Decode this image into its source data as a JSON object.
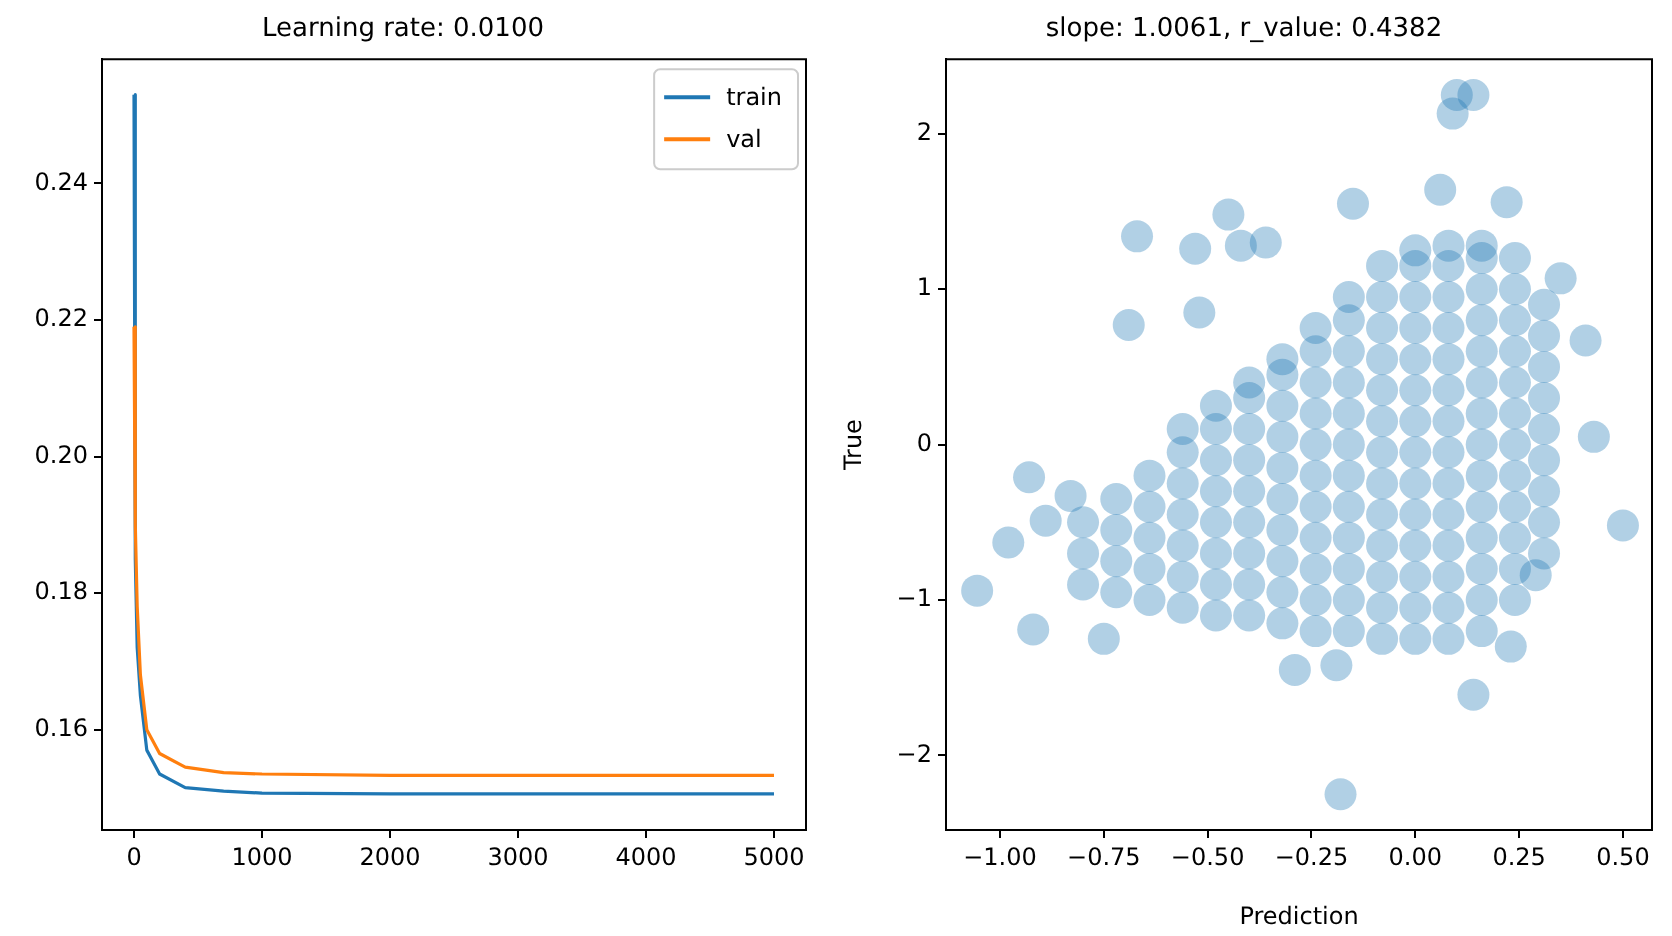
{
  "chart_data": [
    {
      "type": "line",
      "title": "Learning rate: 0.0100",
      "legend": "top right",
      "grid": false,
      "marker": "none",
      "line_style": "solid",
      "xlim": [
        -250,
        5250
      ],
      "ylim": [
        0.1453,
        0.2582
      ],
      "xticks": [
        0,
        1000,
        2000,
        3000,
        4000,
        5000
      ],
      "yticks": [
        {
          "value": 0.16,
          "label": "0.16"
        },
        {
          "value": 0.18,
          "label": "0.18"
        },
        {
          "value": 0.2,
          "label": "0.20"
        },
        {
          "value": 0.22,
          "label": "0.22"
        },
        {
          "value": 0.24,
          "label": "0.24"
        }
      ],
      "x": [
        0,
        10,
        25,
        50,
        100,
        200,
        400,
        700,
        1000,
        2000,
        3000,
        4000,
        5000
      ],
      "series": [
        {
          "name": "train",
          "color": "#1f77b4",
          "values": [
            0.253,
            0.185,
            0.172,
            0.165,
            0.157,
            0.1535,
            0.1515,
            0.151,
            0.1507,
            0.1506,
            0.1506,
            0.1506,
            0.1506
          ]
        },
        {
          "name": "val",
          "color": "#ff7f0e",
          "values": [
            0.219,
            0.19,
            0.178,
            0.168,
            0.16,
            0.1565,
            0.1545,
            0.1537,
            0.1535,
            0.1533,
            0.1533,
            0.1533,
            0.1533
          ]
        }
      ]
    },
    {
      "type": "scatter",
      "title": "slope: 1.0061, r_value: 0.4382",
      "xlabel": "Prediction",
      "ylabel": "True",
      "grid": false,
      "marker": "circle",
      "xlim": [
        -1.13,
        0.57
      ],
      "ylim": [
        -2.48,
        2.48
      ],
      "xticks": [
        {
          "value": -1,
          "label": "−1.00"
        },
        {
          "value": -0.75,
          "label": "−0.75"
        },
        {
          "value": -0.5,
          "label": "−0.50"
        },
        {
          "value": -0.25,
          "label": "−0.25"
        },
        {
          "value": 0,
          "label": "0.00"
        },
        {
          "value": 0.25,
          "label": "0.25"
        },
        {
          "value": 0.5,
          "label": "0.50"
        }
      ],
      "yticks": [
        {
          "value": -2,
          "label": "−2"
        },
        {
          "value": -1,
          "label": "−1"
        },
        0,
        1,
        2
      ],
      "series": [
        {
          "color": "#1f77b4",
          "x": [
            -0.8,
            -0.8,
            -0.8,
            -0.72,
            -0.72,
            -0.72,
            -0.72,
            -0.64,
            -0.64,
            -0.64,
            -0.64,
            -0.64,
            -0.56,
            -0.56,
            -0.56,
            -0.56,
            -0.56,
            -0.56,
            -0.56,
            -0.48,
            -0.48,
            -0.48,
            -0.48,
            -0.48,
            -0.48,
            -0.48,
            -0.48,
            -0.4,
            -0.4,
            -0.4,
            -0.4,
            -0.4,
            -0.4,
            -0.4,
            -0.4,
            -0.4,
            -0.32,
            -0.32,
            -0.32,
            -0.32,
            -0.32,
            -0.32,
            -0.32,
            -0.32,
            -0.32,
            -0.32,
            -0.24,
            -0.24,
            -0.24,
            -0.24,
            -0.24,
            -0.24,
            -0.24,
            -0.24,
            -0.24,
            -0.24,
            -0.24,
            -0.16,
            -0.16,
            -0.16,
            -0.16,
            -0.16,
            -0.16,
            -0.16,
            -0.16,
            -0.16,
            -0.16,
            -0.16,
            -0.16,
            -0.08,
            -0.08,
            -0.08,
            -0.08,
            -0.08,
            -0.08,
            -0.08,
            -0.08,
            -0.08,
            -0.08,
            -0.08,
            -0.08,
            -0.08,
            0,
            0,
            0,
            0,
            0,
            0,
            0,
            0,
            0,
            0,
            0,
            0,
            0,
            0,
            0.08,
            0.08,
            0.08,
            0.08,
            0.08,
            0.08,
            0.08,
            0.08,
            0.08,
            0.08,
            0.08,
            0.08,
            0.08,
            0.08,
            0.16,
            0.16,
            0.16,
            0.16,
            0.16,
            0.16,
            0.16,
            0.16,
            0.16,
            0.16,
            0.16,
            0.16,
            0.16,
            0.16,
            0.24,
            0.24,
            0.24,
            0.24,
            0.24,
            0.24,
            0.24,
            0.24,
            0.24,
            0.24,
            0.24,
            0.24,
            0.31,
            0.31,
            0.31,
            0.31,
            0.31,
            0.31,
            0.31,
            0.31,
            0.31,
            -1.055,
            -0.98,
            -0.93,
            -0.92,
            -0.67,
            -0.69,
            -0.45,
            -0.53,
            -0.52,
            0.1,
            0.14,
            0.09,
            0.06,
            0.22,
            -0.15,
            0.14,
            -0.18,
            -0.29,
            0.5,
            0.43,
            0.41,
            0.35,
            0.29,
            -0.42,
            -0.75,
            -0.19,
            0.23,
            -0.89,
            -0.83,
            -0.36
          ],
          "values": [
            -0.9,
            -0.7,
            -0.5,
            -0.95,
            -0.75,
            -0.55,
            -0.35,
            -1.0,
            -0.8,
            -0.6,
            -0.4,
            -0.2,
            -1.05,
            -0.85,
            -0.65,
            -0.45,
            -0.25,
            -0.05,
            0.1,
            -1.1,
            -0.9,
            -0.7,
            -0.5,
            -0.3,
            -0.1,
            0.1,
            0.25,
            -1.1,
            -0.9,
            -0.7,
            -0.5,
            -0.3,
            -0.1,
            0.1,
            0.3,
            0.4,
            -1.15,
            -0.95,
            -0.75,
            -0.55,
            -0.35,
            -0.15,
            0.05,
            0.25,
            0.45,
            0.55,
            -1.2,
            -1.0,
            -0.8,
            -0.6,
            -0.4,
            -0.2,
            0,
            0.2,
            0.4,
            0.6,
            0.75,
            -1.2,
            -1.0,
            -0.8,
            -0.6,
            -0.4,
            -0.2,
            0,
            0.2,
            0.4,
            0.6,
            0.8,
            0.95,
            -1.25,
            -1.05,
            -0.85,
            -0.65,
            -0.45,
            -0.25,
            -0.05,
            0.15,
            0.35,
            0.55,
            0.75,
            0.95,
            1.15,
            -1.25,
            -1.05,
            -0.85,
            -0.65,
            -0.45,
            -0.25,
            -0.05,
            0.15,
            0.35,
            0.55,
            0.75,
            0.95,
            1.15,
            1.25,
            -1.25,
            -1.05,
            -0.85,
            -0.65,
            -0.45,
            -0.25,
            -0.05,
            0.15,
            0.35,
            0.55,
            0.75,
            0.95,
            1.15,
            1.28,
            -1.2,
            -1.0,
            -0.8,
            -0.6,
            -0.4,
            -0.2,
            0,
            0.2,
            0.4,
            0.6,
            0.8,
            1.0,
            1.2,
            1.28,
            -1.0,
            -0.8,
            -0.6,
            -0.4,
            -0.2,
            0,
            0.2,
            0.4,
            0.6,
            0.8,
            1.0,
            1.2,
            -0.7,
            -0.5,
            -0.3,
            -0.1,
            0.1,
            0.3,
            0.5,
            0.7,
            0.9,
            -0.94,
            -0.63,
            -0.21,
            -1.19,
            1.34,
            0.77,
            1.48,
            1.26,
            0.85,
            2.25,
            2.25,
            2.13,
            1.64,
            1.56,
            1.55,
            -1.61,
            -2.25,
            -1.45,
            -0.52,
            0.05,
            0.67,
            1.07,
            -0.84,
            1.28,
            -1.25,
            -1.42,
            -1.3,
            -0.49,
            -0.33,
            1.3
          ]
        }
      ]
    }
  ]
}
